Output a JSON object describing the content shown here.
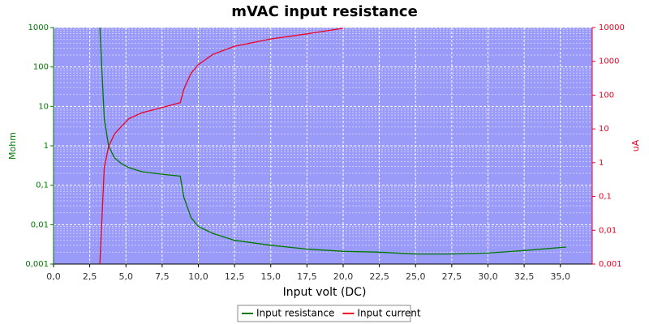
{
  "chart_data": {
    "type": "line",
    "title": "mVAC input resistance",
    "xlabel": "Input volt (DC)",
    "ylabel": "Mohm",
    "y2label": "uA",
    "x": [
      3.2,
      3.5,
      3.8,
      4.2,
      4.7,
      5.2,
      6.1,
      7.5,
      8.75,
      9.0,
      9.5,
      10,
      11,
      12.5,
      15,
      17.5,
      20,
      22.5,
      25,
      27.5,
      30,
      32.5,
      35.4
    ],
    "series": [
      {
        "name": "Input resistance",
        "color": "#007700",
        "axis": "y",
        "values": [
          1000,
          5,
          1,
          0.5,
          0.35,
          0.28,
          0.22,
          0.19,
          0.17,
          0.05,
          0.015,
          0.009,
          0.006,
          0.004,
          0.003,
          0.0024,
          0.0021,
          0.002,
          0.0018,
          0.0018,
          0.0019,
          0.0022,
          0.0027
        ]
      },
      {
        "name": "Input current",
        "color": "#ee0022",
        "axis": "y2",
        "values": [
          0.001,
          0.7,
          3,
          7,
          12,
          20,
          30,
          43,
          60,
          150,
          450,
          800,
          1600,
          2800,
          4600,
          6500,
          9500,
          null,
          null,
          null,
          null,
          null,
          null
        ]
      }
    ],
    "xlim": [
      0,
      37.2
    ],
    "xticks": [
      {
        "value": 0,
        "label": "0,0"
      },
      {
        "value": 2.5,
        "label": "2,5"
      },
      {
        "value": 5,
        "label": "5,0"
      },
      {
        "value": 7.5,
        "label": "7,5"
      },
      {
        "value": 10,
        "label": "10,0"
      },
      {
        "value": 12.5,
        "label": "12,5"
      },
      {
        "value": 15,
        "label": "15,0"
      },
      {
        "value": 17.5,
        "label": "17,5"
      },
      {
        "value": 20,
        "label": "20,0"
      },
      {
        "value": 22.5,
        "label": "22,5"
      },
      {
        "value": 25,
        "label": "25,0"
      },
      {
        "value": 27.5,
        "label": "27,5"
      },
      {
        "value": 30,
        "label": "30,0"
      },
      {
        "value": 32.5,
        "label": "32,5"
      },
      {
        "value": 35,
        "label": "35,0"
      }
    ],
    "ylim": [
      0.001,
      1000
    ],
    "yticks": [
      {
        "value": 0.001,
        "label": "0,001"
      },
      {
        "value": 0.01,
        "label": "0,01"
      },
      {
        "value": 0.1,
        "label": "0,1"
      },
      1,
      10,
      100,
      1000
    ],
    "y2lim": [
      0.001,
      10000
    ],
    "y2ticks": [
      {
        "value": 0.001,
        "label": "0,001"
      },
      {
        "value": 0.01,
        "label": "0,01"
      },
      {
        "value": 0.1,
        "label": "0,1"
      },
      1,
      10,
      100,
      1000,
      10000
    ],
    "ylog": true,
    "y2log": true,
    "grid": true,
    "legend": "bottom"
  }
}
